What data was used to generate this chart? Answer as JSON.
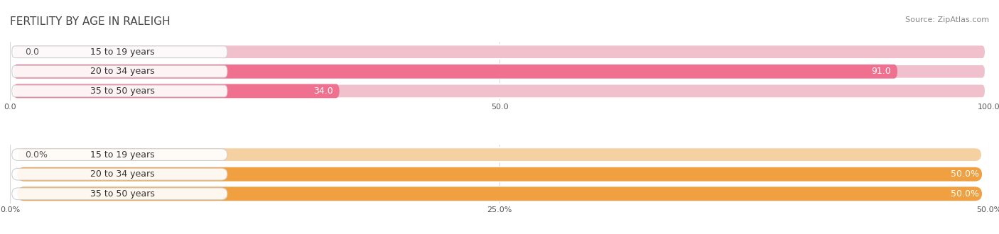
{
  "title": "FERTILITY BY AGE IN RALEIGH",
  "source": "Source: ZipAtlas.com",
  "chart1": {
    "categories": [
      "15 to 19 years",
      "20 to 34 years",
      "35 to 50 years"
    ],
    "values": [
      0.0,
      91.0,
      34.0
    ],
    "max_val": 100.0,
    "x_ticks": [
      0.0,
      50.0,
      100.0
    ],
    "x_tick_labels": [
      "0.0",
      "50.0",
      "100.0"
    ],
    "bar_color": "#f07090",
    "bg_color": "#e8e8e8",
    "bg_bar_color": "#f0c0cc"
  },
  "chart2": {
    "categories": [
      "15 to 19 years",
      "20 to 34 years",
      "35 to 50 years"
    ],
    "values": [
      0.0,
      50.0,
      50.0
    ],
    "max_val": 50.0,
    "x_ticks": [
      0.0,
      25.0,
      50.0
    ],
    "x_tick_labels": [
      "0.0%",
      "25.0%",
      "50.0%"
    ],
    "bar_color": "#f0a040",
    "bg_color": "#e8e8e8",
    "bg_bar_color": "#f5d0a0"
  },
  "fig_bg": "#ffffff",
  "bar_height": 0.72,
  "label_fontsize": 9,
  "tick_fontsize": 8,
  "title_fontsize": 11,
  "cat_fontsize": 9,
  "grid_color": "#d8d8d8"
}
